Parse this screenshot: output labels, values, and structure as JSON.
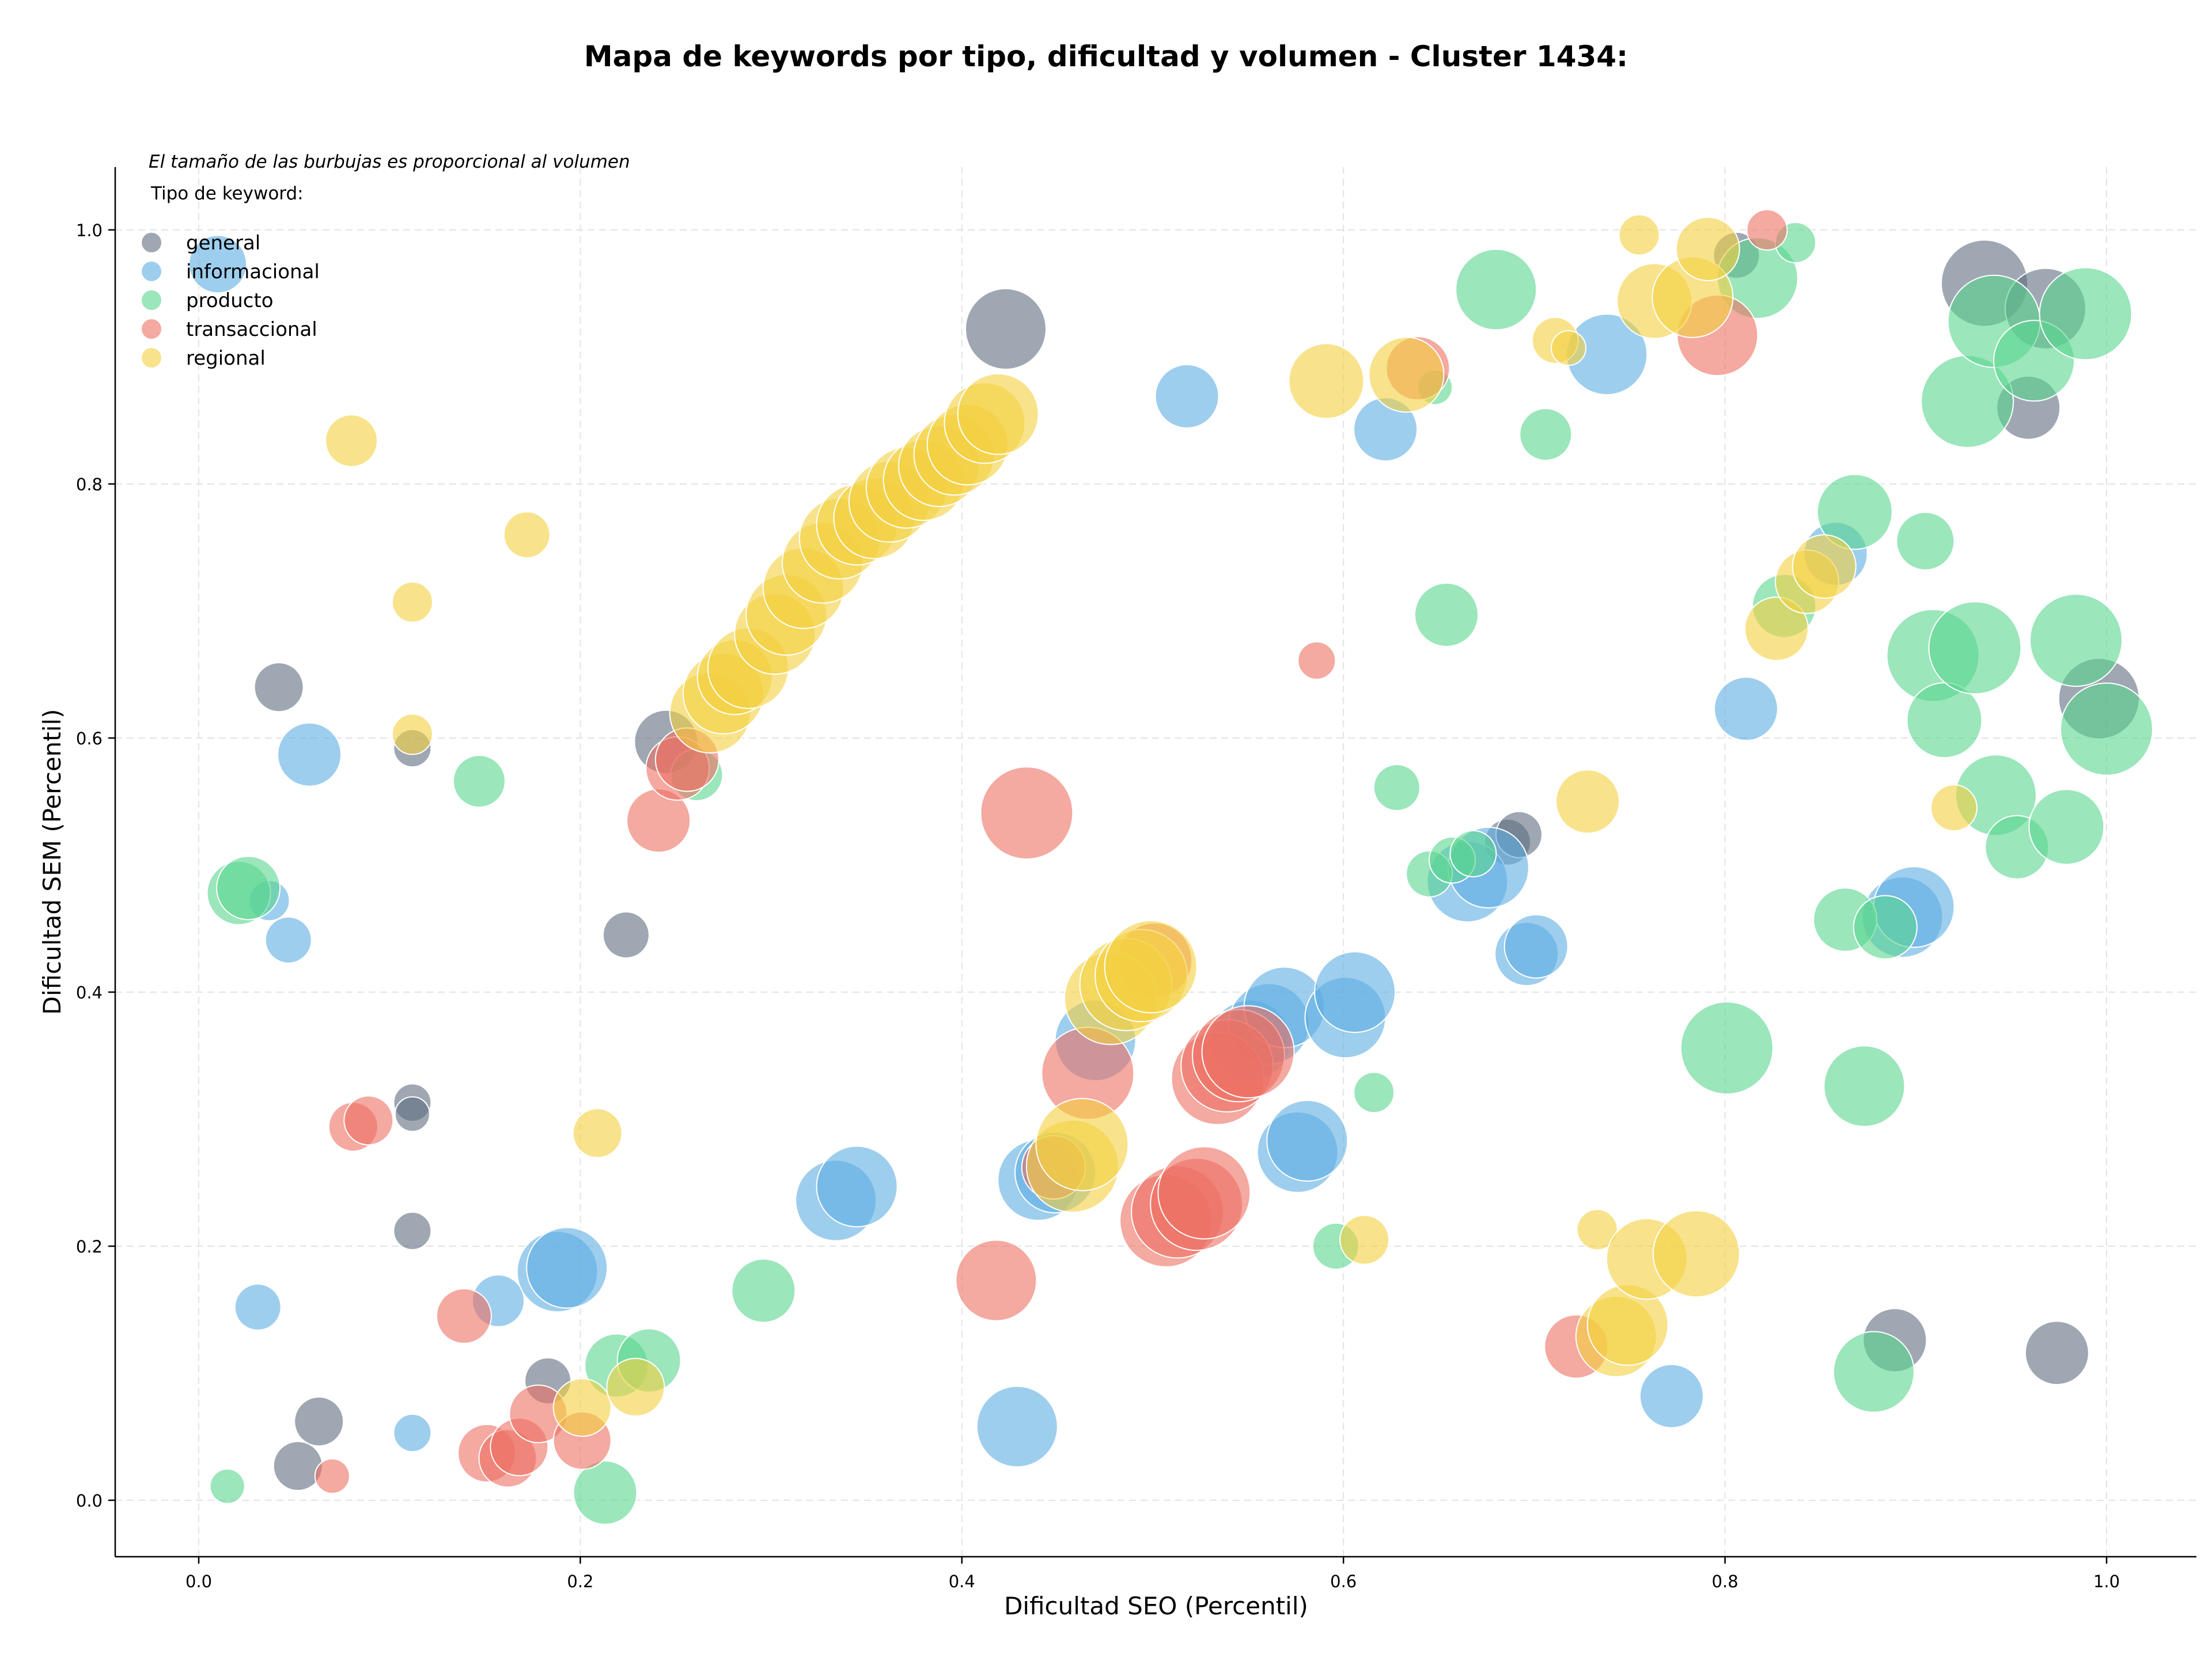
{
  "chart_data": {
    "type": "scatter",
    "title": "Mapa de keywords por tipo, dificultad y volumen - Cluster 1434:",
    "xlabel": "Dificultad SEO (Percentil)",
    "ylabel": "Dificultad SEM (Percentil)",
    "xlim": [
      -0.045,
      1.05
    ],
    "ylim": [
      -0.045,
      1.05
    ],
    "xticks": [
      "0.0",
      "0.2",
      "0.4",
      "0.6",
      "0.8",
      "1.0"
    ],
    "yticks": [
      "0.0",
      "0.2",
      "0.4",
      "0.6",
      "0.8",
      "1.0"
    ],
    "grid": true,
    "note": "El tamaño de las burbujas es proporcional al volumen",
    "legend": {
      "title": "Tipo de keyword:",
      "placement": "upper-left",
      "entries": [
        "general",
        "informacional",
        "producto",
        "transaccional",
        "regional"
      ]
    },
    "series": [
      {
        "name": "general",
        "color": "#5d6d7e",
        "points": [
          [
            0.042,
            0.64,
            17
          ],
          [
            0.112,
            0.592,
            13
          ],
          [
            0.112,
            0.313,
            13
          ],
          [
            0.112,
            0.304,
            12
          ],
          [
            0.112,
            0.212,
            13
          ],
          [
            0.063,
            0.062,
            17
          ],
          [
            0.052,
            0.027,
            17
          ],
          [
            0.183,
            0.094,
            16
          ],
          [
            0.224,
            0.445,
            16
          ],
          [
            0.245,
            0.597,
            22
          ],
          [
            0.423,
            0.922,
            28
          ],
          [
            0.686,
            0.518,
            16
          ],
          [
            0.692,
            0.524,
            16
          ],
          [
            0.806,
            0.98,
            16
          ],
          [
            0.936,
            0.958,
            30
          ],
          [
            0.968,
            0.938,
            28
          ],
          [
            0.959,
            0.86,
            22
          ],
          [
            0.996,
            0.631,
            28
          ],
          [
            0.889,
            0.126,
            22
          ],
          [
            0.974,
            0.116,
            22
          ]
        ]
      },
      {
        "name": "informacional",
        "color": "#5dade2",
        "points": [
          [
            0.01,
            0.973,
            20
          ],
          [
            0.037,
            0.472,
            14
          ],
          [
            0.047,
            0.441,
            16
          ],
          [
            0.058,
            0.587,
            22
          ],
          [
            0.031,
            0.152,
            16
          ],
          [
            0.112,
            0.053,
            13
          ],
          [
            0.157,
            0.157,
            18
          ],
          [
            0.188,
            0.18,
            28
          ],
          [
            0.193,
            0.183,
            28
          ],
          [
            0.334,
            0.236,
            28
          ],
          [
            0.345,
            0.247,
            28
          ],
          [
            0.429,
            0.058,
            28
          ],
          [
            0.44,
            0.252,
            28
          ],
          [
            0.449,
            0.258,
            28
          ],
          [
            0.47,
            0.362,
            28
          ],
          [
            0.518,
            0.869,
            22
          ],
          [
            0.551,
            0.362,
            28
          ],
          [
            0.561,
            0.375,
            28
          ],
          [
            0.569,
            0.388,
            28
          ],
          [
            0.576,
            0.274,
            28
          ],
          [
            0.581,
            0.283,
            28
          ],
          [
            0.601,
            0.38,
            28
          ],
          [
            0.606,
            0.4,
            28
          ],
          [
            0.622,
            0.843,
            22
          ],
          [
            0.665,
            0.487,
            28
          ],
          [
            0.676,
            0.498,
            28
          ],
          [
            0.696,
            0.43,
            22
          ],
          [
            0.701,
            0.436,
            22
          ],
          [
            0.738,
            0.902,
            28
          ],
          [
            0.772,
            0.082,
            22
          ],
          [
            0.811,
            0.623,
            22
          ],
          [
            0.858,
            0.745,
            22
          ],
          [
            0.893,
            0.459,
            28
          ],
          [
            0.899,
            0.467,
            28
          ]
        ]
      },
      {
        "name": "producto",
        "color": "#58d68d",
        "points": [
          [
            0.015,
            0.011,
            12
          ],
          [
            0.021,
            0.478,
            22
          ],
          [
            0.026,
            0.482,
            22
          ],
          [
            0.147,
            0.566,
            18
          ],
          [
            0.213,
            0.006,
            22
          ],
          [
            0.219,
            0.106,
            22
          ],
          [
            0.236,
            0.11,
            22
          ],
          [
            0.261,
            0.571,
            18
          ],
          [
            0.296,
            0.165,
            22
          ],
          [
            0.596,
            0.2,
            16
          ],
          [
            0.616,
            0.321,
            14
          ],
          [
            0.628,
            0.561,
            16
          ],
          [
            0.645,
            0.493,
            16
          ],
          [
            0.648,
            0.876,
            12
          ],
          [
            0.654,
            0.697,
            22
          ],
          [
            0.657,
            0.504,
            16
          ],
          [
            0.668,
            0.509,
            16
          ],
          [
            0.68,
            0.953,
            28
          ],
          [
            0.706,
            0.839,
            18
          ],
          [
            0.801,
            0.356,
            32
          ],
          [
            0.817,
            0.962,
            28
          ],
          [
            0.831,
            0.704,
            22
          ],
          [
            0.837,
            0.99,
            14
          ],
          [
            0.863,
            0.457,
            22
          ],
          [
            0.868,
            0.778,
            26
          ],
          [
            0.873,
            0.326,
            28
          ],
          [
            0.878,
            0.101,
            28
          ],
          [
            0.884,
            0.451,
            22
          ],
          [
            0.905,
            0.755,
            20
          ],
          [
            0.909,
            0.665,
            32
          ],
          [
            0.915,
            0.614,
            26
          ],
          [
            0.927,
            0.865,
            32
          ],
          [
            0.931,
            0.671,
            32
          ],
          [
            0.941,
            0.928,
            32
          ],
          [
            0.942,
            0.555,
            28
          ],
          [
            0.953,
            0.514,
            22
          ],
          [
            0.962,
            0.897,
            28
          ],
          [
            0.979,
            0.53,
            26
          ],
          [
            0.984,
            0.677,
            32
          ],
          [
            0.989,
            0.934,
            32
          ],
          [
            1.0,
            0.607,
            32
          ]
        ]
      },
      {
        "name": "transaccional",
        "color": "#ec7063",
        "points": [
          [
            0.07,
            0.019,
            12
          ],
          [
            0.081,
            0.294,
            17
          ],
          [
            0.089,
            0.299,
            17
          ],
          [
            0.139,
            0.145,
            19
          ],
          [
            0.151,
            0.037,
            20
          ],
          [
            0.162,
            0.033,
            20
          ],
          [
            0.168,
            0.042,
            20
          ],
          [
            0.178,
            0.068,
            20
          ],
          [
            0.201,
            0.047,
            20
          ],
          [
            0.241,
            0.535,
            22
          ],
          [
            0.251,
            0.576,
            22
          ],
          [
            0.256,
            0.583,
            22
          ],
          [
            0.418,
            0.173,
            28
          ],
          [
            0.434,
            0.541,
            32
          ],
          [
            0.448,
            0.262,
            22
          ],
          [
            0.466,
            0.336,
            32
          ],
          [
            0.501,
            0.425,
            26
          ],
          [
            0.507,
            0.22,
            32
          ],
          [
            0.513,
            0.227,
            32
          ],
          [
            0.523,
            0.233,
            32
          ],
          [
            0.527,
            0.242,
            32
          ],
          [
            0.534,
            0.332,
            32
          ],
          [
            0.539,
            0.342,
            32
          ],
          [
            0.545,
            0.35,
            32
          ],
          [
            0.55,
            0.353,
            32
          ],
          [
            0.586,
            0.661,
            13
          ],
          [
            0.639,
            0.891,
            22
          ],
          [
            0.722,
            0.121,
            22
          ],
          [
            0.796,
            0.917,
            28
          ],
          [
            0.822,
            1.0,
            14
          ]
        ]
      },
      {
        "name": "regional",
        "color": "#f4d03f",
        "points": [
          [
            0.08,
            0.834,
            18
          ],
          [
            0.112,
            0.707,
            14
          ],
          [
            0.112,
            0.603,
            14
          ],
          [
            0.172,
            0.76,
            16
          ],
          [
            0.209,
            0.289,
            17
          ],
          [
            0.201,
            0.073,
            20
          ],
          [
            0.229,
            0.089,
            20
          ],
          [
            0.268,
            0.62,
            28
          ],
          [
            0.275,
            0.635,
            28
          ],
          [
            0.281,
            0.648,
            26
          ],
          [
            0.288,
            0.655,
            28
          ],
          [
            0.302,
            0.682,
            28
          ],
          [
            0.308,
            0.697,
            28
          ],
          [
            0.317,
            0.718,
            28
          ],
          [
            0.327,
            0.738,
            28
          ],
          [
            0.336,
            0.757,
            28
          ],
          [
            0.345,
            0.768,
            28
          ],
          [
            0.354,
            0.773,
            28
          ],
          [
            0.362,
            0.786,
            28
          ],
          [
            0.371,
            0.797,
            28
          ],
          [
            0.38,
            0.803,
            28
          ],
          [
            0.388,
            0.814,
            28
          ],
          [
            0.396,
            0.823,
            28
          ],
          [
            0.403,
            0.831,
            28
          ],
          [
            0.412,
            0.848,
            28
          ],
          [
            0.419,
            0.855,
            28
          ],
          [
            0.458,
            0.263,
            32
          ],
          [
            0.463,
            0.28,
            32
          ],
          [
            0.478,
            0.395,
            32
          ],
          [
            0.486,
            0.406,
            32
          ],
          [
            0.494,
            0.413,
            32
          ],
          [
            0.499,
            0.42,
            32
          ],
          [
            0.591,
            0.881,
            26
          ],
          [
            0.611,
            0.205,
            17
          ],
          [
            0.633,
            0.886,
            26
          ],
          [
            0.711,
            0.913,
            16
          ],
          [
            0.718,
            0.907,
            12
          ],
          [
            0.728,
            0.55,
            22
          ],
          [
            0.733,
            0.213,
            14
          ],
          [
            0.743,
            0.129,
            28
          ],
          [
            0.749,
            0.138,
            28
          ],
          [
            0.755,
            0.996,
            14
          ],
          [
            0.759,
            0.19,
            28
          ],
          [
            0.763,
            0.944,
            26
          ],
          [
            0.783,
            0.947,
            28
          ],
          [
            0.785,
            0.194,
            30
          ],
          [
            0.791,
            0.985,
            22
          ],
          [
            0.827,
            0.686,
            22
          ],
          [
            0.843,
            0.723,
            22
          ],
          [
            0.852,
            0.735,
            22
          ],
          [
            0.92,
            0.545,
            16
          ]
        ]
      }
    ]
  }
}
